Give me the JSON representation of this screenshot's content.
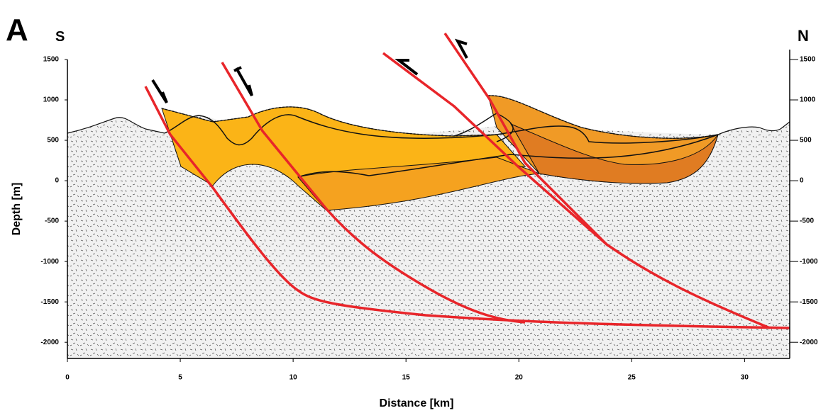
{
  "panel_label": "A",
  "left_label": "S",
  "right_label": "N",
  "x_axis": {
    "label": "Distance [km]",
    "lim": [
      0,
      32
    ],
    "ticks": [
      0,
      5,
      10,
      15,
      20,
      25,
      30
    ]
  },
  "y_axis": {
    "label": "Depth [m]",
    "lim": [
      -2200,
      1500
    ],
    "ticks": [
      -2000,
      -1500,
      -1000,
      -500,
      0,
      500,
      1000,
      1500
    ]
  }
}
